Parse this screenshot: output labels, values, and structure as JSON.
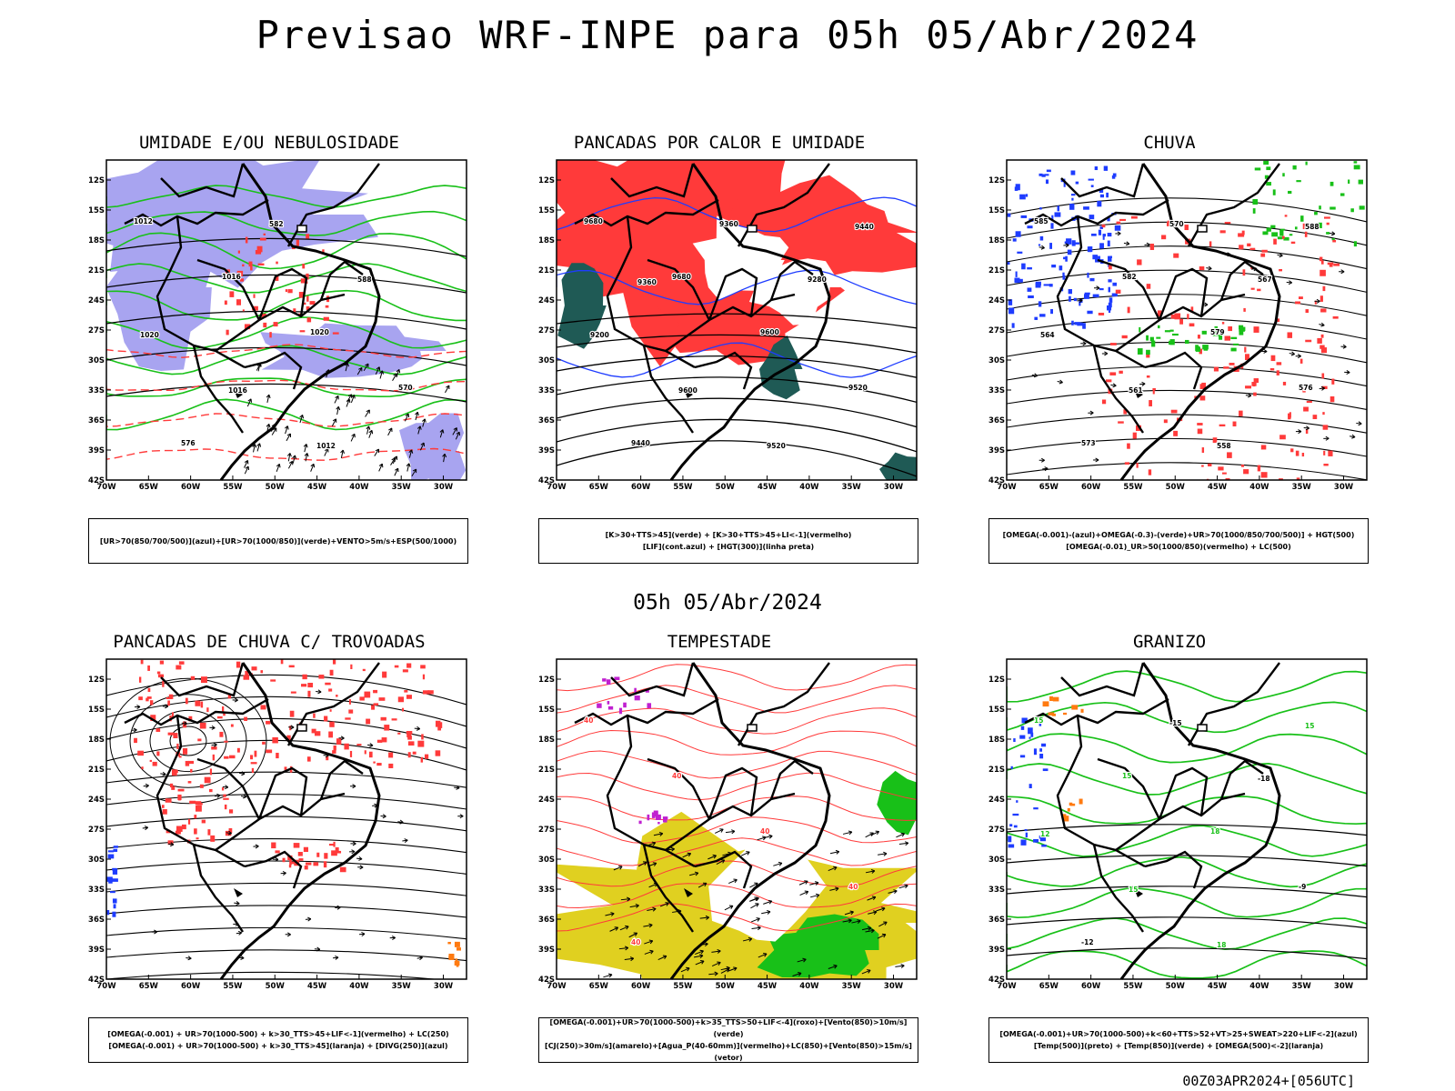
{
  "header": {
    "title": "Previsao WRF-INPE  para 05h 05/Abr/2024"
  },
  "middle": {
    "subtitle": "05h 05/Abr/2024"
  },
  "footer": {
    "run": "00Z03APR2024+[056UTC]"
  },
  "axes": {
    "lat_labels": [
      "12S",
      "15S",
      "18S",
      "21S",
      "24S",
      "27S",
      "30S",
      "33S",
      "36S",
      "39S",
      "42S"
    ],
    "lon_labels": [
      "70W",
      "65W",
      "60W",
      "55W",
      "50W",
      "45W",
      "40W",
      "35W",
      "30W"
    ]
  },
  "colors": {
    "blue": "#1e3cff",
    "green": "#18c018",
    "red": "#ff3a3a",
    "lavender": "#a8a4f0",
    "yellow": "#e0d020",
    "teal": "#1f5a55",
    "orange": "#ff7a10",
    "purple": "#c020d0"
  },
  "panels": [
    {
      "id": "umidade",
      "title": "UMIDADE E/OU NEBULOSIDADE",
      "legend": [
        "[UR>70(850/700/500)](azul)+[UR>70(1000/850)](verde)+VENTO>5m/s+ESP(500/1000)"
      ],
      "contour_labels": [
        "1012",
        "1016",
        "1020",
        "570",
        "576",
        "582",
        "588",
        "1020",
        "1016",
        "1012"
      ]
    },
    {
      "id": "pancadas-calor",
      "title": "PANCADAS POR CALOR E UMIDADE",
      "legend": [
        "[K>30+TTS>45](verde) + [K>30+TTS>45+LI<-1](vermelho)",
        "[LIF](cont.azul) + [HGT(300)](linha preta)"
      ],
      "contour_labels": [
        "9680",
        "9680",
        "9600",
        "9520",
        "9440",
        "9360",
        "9280",
        "9200",
        "9600",
        "9520",
        "9440",
        "9360"
      ]
    },
    {
      "id": "chuva",
      "title": "CHUVA",
      "legend": [
        "[OMEGA(-0.001)-(azul)+OMEGA(-0.3)-(verde)+UR>70(1000/850/700/500)] + HGT(500)",
        "[OMEGA(-0.01)_UR>50(1000/850)(vermelho) + LC(500)"
      ],
      "contour_labels": [
        "585",
        "582",
        "579",
        "576",
        "573",
        "570",
        "567",
        "564",
        "561",
        "558",
        "588"
      ]
    },
    {
      "id": "trovoadas",
      "title": "PANCADAS DE CHUVA C/ TROVOADAS",
      "legend": [
        "[OMEGA(-0.001) + UR>70(1000-500) + k>30_TTS>45+LIF<-1](vermelho) + LC(250)",
        "[OMEGA(-0.001) + UR>70(1000-500) + k>30_TTS>45](laranja) + [DIVG(250)](azul)"
      ],
      "contour_labels": []
    },
    {
      "id": "tempestade",
      "title": "TEMPESTADE",
      "legend": [
        "[OMEGA(-0.001)+UR>70(1000-500)+k>35_TTS>50+LIF<-4](roxo)+[Vento(850)>10m/s](verde)",
        "[CJ(250)>30m/s](amarelo)+[Agua_P(40-60mm)](vermelho)+LC(850)+[Vento(850)>15m/s](vetor)"
      ],
      "contour_labels": [
        "40",
        "40",
        "40",
        "40",
        "40"
      ]
    },
    {
      "id": "granizo",
      "title": "GRANIZO",
      "legend": [
        "[OMEGA(-0.001)+UR>70(1000-500)+k<60+TTS>52+VT>25+SWEAT>220+LIF<-2](azul)",
        "[Temp(500)](preto) + [Temp(850)](verde) + [OMEGA(500)<-2](laranja)"
      ],
      "contour_labels": [
        "15",
        "15",
        "18",
        "-9",
        "-12",
        "-15",
        "-18",
        "12",
        "15",
        "18",
        "15"
      ]
    }
  ]
}
